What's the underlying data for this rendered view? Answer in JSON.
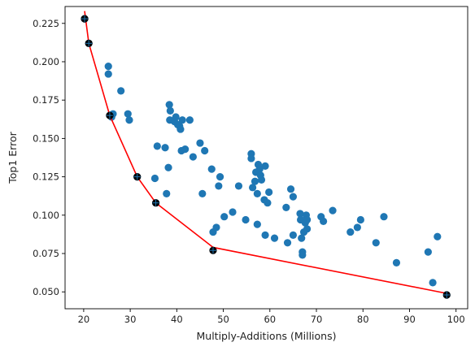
{
  "chart_data": {
    "type": "scatter",
    "title": "",
    "xlabel": "Multiply-Additions (Millions)",
    "ylabel": "Top1 Error",
    "xlim": [
      16,
      102.5
    ],
    "ylim": [
      0.039,
      0.236
    ],
    "xticks": [
      20,
      30,
      40,
      50,
      60,
      70,
      80,
      90,
      100
    ],
    "yticks": [
      0.05,
      0.075,
      0.1,
      0.125,
      0.15,
      0.175,
      0.2,
      0.225
    ],
    "grid": false,
    "legend": "none",
    "colors": {
      "points": "#1f77b4",
      "frontier": "#ff0000",
      "frontier_markers": "#000000"
    },
    "series": [
      {
        "type": "scatter",
        "points": [
          [
            20.2,
            0.228
          ],
          [
            21.1,
            0.212
          ],
          [
            25.3,
            0.197
          ],
          [
            25.3,
            0.192
          ],
          [
            25.6,
            0.165
          ],
          [
            26.3,
            0.166
          ],
          [
            26.0,
            0.164
          ],
          [
            28.0,
            0.181
          ],
          [
            29.5,
            0.166
          ],
          [
            29.8,
            0.162
          ],
          [
            31.5,
            0.125
          ],
          [
            35.3,
            0.124
          ],
          [
            35.8,
            0.145
          ],
          [
            35.5,
            0.108
          ],
          [
            37.5,
            0.144
          ],
          [
            37.8,
            0.114
          ],
          [
            38.2,
            0.131
          ],
          [
            38.4,
            0.172
          ],
          [
            38.6,
            0.168
          ],
          [
            38.5,
            0.162
          ],
          [
            39.5,
            0.161
          ],
          [
            39.8,
            0.164
          ],
          [
            40.2,
            0.159
          ],
          [
            40.6,
            0.158
          ],
          [
            40.8,
            0.156
          ],
          [
            41.2,
            0.162
          ],
          [
            41.0,
            0.142
          ],
          [
            41.8,
            0.143
          ],
          [
            42.8,
            0.162
          ],
          [
            43.5,
            0.138
          ],
          [
            45.0,
            0.147
          ],
          [
            45.5,
            0.114
          ],
          [
            46.0,
            0.142
          ],
          [
            47.5,
            0.13
          ],
          [
            47.8,
            0.089
          ],
          [
            48.5,
            0.092
          ],
          [
            49.0,
            0.119
          ],
          [
            49.3,
            0.125
          ],
          [
            50.2,
            0.099
          ],
          [
            52.0,
            0.102
          ],
          [
            53.3,
            0.119
          ],
          [
            54.8,
            0.097
          ],
          [
            56.0,
            0.14
          ],
          [
            56.0,
            0.137
          ],
          [
            56.3,
            0.118
          ],
          [
            56.8,
            0.122
          ],
          [
            57.0,
            0.128
          ],
          [
            57.3,
            0.114
          ],
          [
            57.3,
            0.094
          ],
          [
            57.5,
            0.133
          ],
          [
            57.8,
            0.13
          ],
          [
            58.0,
            0.126
          ],
          [
            58.2,
            0.123
          ],
          [
            58.8,
            0.11
          ],
          [
            59.0,
            0.132
          ],
          [
            59.0,
            0.087
          ],
          [
            59.5,
            0.108
          ],
          [
            59.8,
            0.115
          ],
          [
            61.0,
            0.085
          ],
          [
            63.5,
            0.105
          ],
          [
            63.8,
            0.082
          ],
          [
            64.5,
            0.117
          ],
          [
            65.0,
            0.112
          ],
          [
            65.0,
            0.087
          ],
          [
            66.5,
            0.101
          ],
          [
            66.6,
            0.097
          ],
          [
            66.8,
            0.085
          ],
          [
            67.0,
            0.076
          ],
          [
            67.0,
            0.074
          ],
          [
            67.3,
            0.089
          ],
          [
            67.6,
            0.095
          ],
          [
            67.8,
            0.1
          ],
          [
            68.0,
            0.097
          ],
          [
            68.0,
            0.091
          ],
          [
            71.0,
            0.099
          ],
          [
            71.5,
            0.096
          ],
          [
            73.5,
            0.103
          ],
          [
            77.3,
            0.089
          ],
          [
            78.8,
            0.092
          ],
          [
            79.5,
            0.097
          ],
          [
            82.8,
            0.082
          ],
          [
            84.5,
            0.099
          ],
          [
            87.2,
            0.069
          ],
          [
            94.0,
            0.076
          ],
          [
            95.0,
            0.056
          ],
          [
            96.0,
            0.086
          ],
          [
            98.0,
            0.048
          ]
        ]
      },
      {
        "type": "line",
        "points": [
          [
            20.2,
            0.233
          ],
          [
            21.1,
            0.212
          ],
          [
            25.6,
            0.165
          ],
          [
            31.5,
            0.125
          ],
          [
            35.5,
            0.108
          ],
          [
            47.8,
            0.079
          ],
          [
            98.0,
            0.049
          ]
        ]
      },
      {
        "type": "marker",
        "points": [
          [
            20.2,
            0.228
          ],
          [
            21.1,
            0.212
          ],
          [
            25.6,
            0.165
          ],
          [
            31.5,
            0.125
          ],
          [
            35.5,
            0.108
          ],
          [
            47.8,
            0.077
          ],
          [
            98.0,
            0.048
          ]
        ]
      }
    ]
  }
}
